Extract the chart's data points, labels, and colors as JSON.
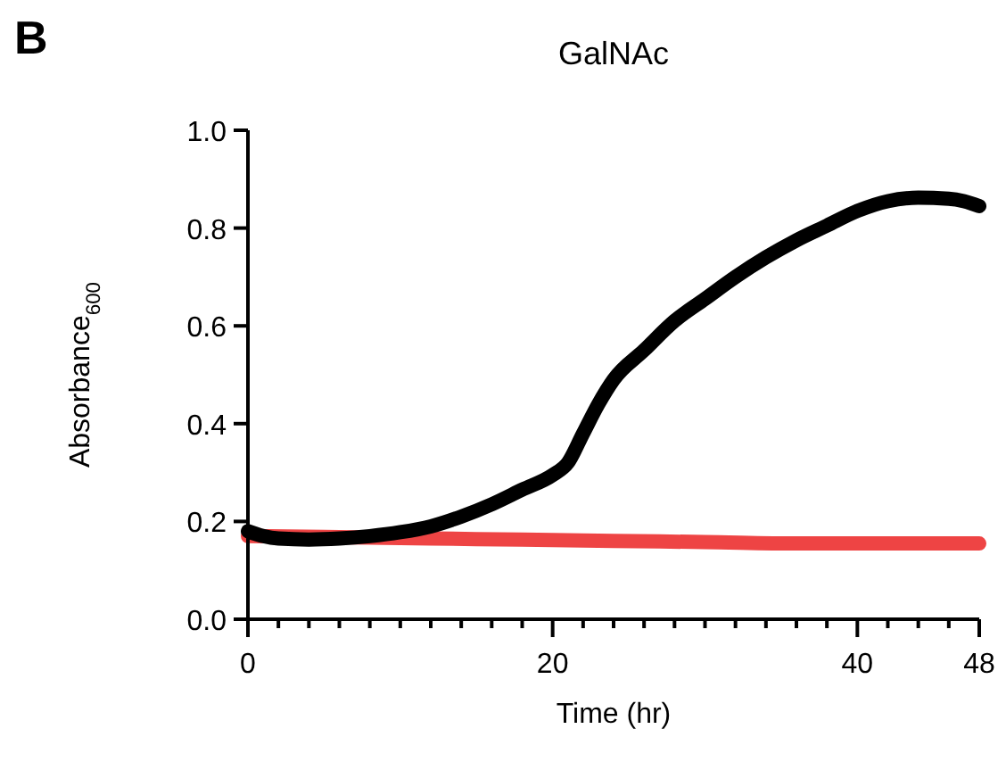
{
  "chart_data": {
    "type": "line",
    "title": "GalNAc",
    "xlabel": "Time (hr)",
    "ylabel": "Absorbance$_{600}$",
    "annotations": [
      "B"
    ],
    "xlim": [
      0,
      48
    ],
    "ylim": [
      0,
      1
    ],
    "xticks": [
      0,
      {
        "value": 2,
        "label": null
      },
      {
        "value": 4,
        "label": null
      },
      {
        "value": 6,
        "label": null
      },
      {
        "value": 8,
        "label": null
      },
      {
        "value": 10,
        "label": null
      },
      {
        "value": 12,
        "label": null
      },
      {
        "value": 14,
        "label": null
      },
      {
        "value": 16,
        "label": null
      },
      {
        "value": 18,
        "label": null
      },
      20,
      {
        "value": 22,
        "label": null
      },
      {
        "value": 24,
        "label": null
      },
      {
        "value": 26,
        "label": null
      },
      {
        "value": 28,
        "label": null
      },
      {
        "value": 30,
        "label": null
      },
      {
        "value": 32,
        "label": null
      },
      {
        "value": 34,
        "label": null
      },
      {
        "value": 36,
        "label": null
      },
      {
        "value": 38,
        "label": null
      },
      40,
      {
        "value": 42,
        "label": null
      },
      {
        "value": 44,
        "label": null
      },
      {
        "value": 46,
        "label": null
      },
      48
    ],
    "yticks": [
      {
        "value": 0,
        "label": "0.0"
      },
      {
        "value": 0.2,
        "label": "0.2"
      },
      {
        "value": 0.4,
        "label": "0.4"
      },
      {
        "value": 0.6,
        "label": "0.6"
      },
      {
        "value": 0.8,
        "label": "0.8"
      },
      {
        "value": 1,
        "label": "1.0"
      }
    ],
    "grid": false,
    "marker": "none",
    "line_style": "solid",
    "series": [
      {
        "color": "#ee4444",
        "x": [
          0,
          6,
          12,
          18,
          24,
          30,
          36,
          42,
          48
        ],
        "values": [
          0.17,
          0.168,
          0.165,
          0.163,
          0.16,
          0.158,
          0.155,
          0.155,
          0.155
        ]
      },
      {
        "color": "#000000",
        "x": [
          0,
          1,
          2,
          4,
          6,
          8,
          10,
          12,
          14,
          16,
          18,
          20,
          21,
          22,
          23,
          24,
          26,
          28,
          30,
          32,
          34,
          36,
          38,
          40,
          42,
          44,
          46,
          47,
          48
        ],
        "values": [
          0.18,
          0.17,
          0.165,
          0.163,
          0.165,
          0.17,
          0.178,
          0.19,
          0.21,
          0.235,
          0.265,
          0.295,
          0.32,
          0.38,
          0.44,
          0.49,
          0.55,
          0.61,
          0.655,
          0.7,
          0.74,
          0.775,
          0.805,
          0.835,
          0.855,
          0.862,
          0.86,
          0.855,
          0.845
        ]
      }
    ]
  }
}
